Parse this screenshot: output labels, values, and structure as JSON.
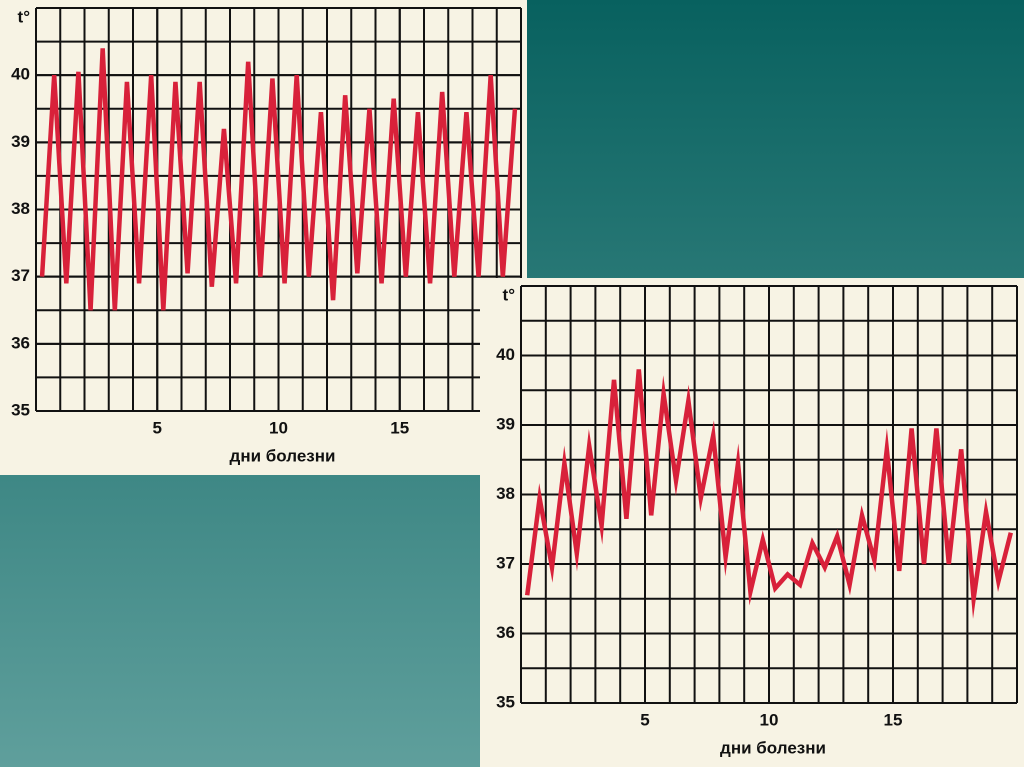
{
  "chart_data": [
    {
      "type": "line",
      "ylabel": "t°",
      "xlabel": "дни болезни",
      "color": "#d8213a",
      "xlim": [
        0,
        20
      ],
      "xticks": [
        5,
        10,
        15
      ],
      "ylim": [
        35,
        41
      ],
      "yticks": [
        35,
        36,
        37,
        38,
        39,
        40
      ],
      "grid": true,
      "x": [
        0.25,
        0.75,
        1.25,
        1.75,
        2.25,
        2.75,
        3.25,
        3.75,
        4.25,
        4.75,
        5.25,
        5.75,
        6.25,
        6.75,
        7.25,
        7.75,
        8.25,
        8.75,
        9.25,
        9.75,
        10.25,
        10.75,
        11.25,
        11.75,
        12.25,
        12.75,
        13.25,
        13.75,
        14.25,
        14.75,
        15.25,
        15.75,
        16.25,
        16.75,
        17.25,
        17.75,
        18.25,
        18.75,
        19.25,
        19.75
      ],
      "values": [
        37.0,
        40.0,
        36.9,
        40.05,
        36.5,
        40.4,
        36.5,
        39.9,
        36.9,
        40.0,
        36.5,
        39.9,
        37.05,
        39.9,
        36.85,
        39.2,
        36.9,
        40.2,
        37.0,
        39.95,
        36.9,
        40.0,
        37.0,
        39.45,
        36.65,
        39.7,
        37.05,
        39.5,
        36.9,
        39.65,
        37.0,
        39.45,
        36.9,
        39.75,
        37.0,
        39.45,
        37.0,
        40.0,
        37.0,
        39.5
      ]
    },
    {
      "type": "line",
      "ylabel": "t°",
      "xlabel": "дни болезни",
      "color": "#d8213a",
      "xlim": [
        0,
        20
      ],
      "xticks": [
        5,
        10,
        15
      ],
      "ylim": [
        35,
        41
      ],
      "yticks": [
        35,
        36,
        37,
        38,
        39,
        40
      ],
      "grid": true,
      "x": [
        0.25,
        0.75,
        1.25,
        1.75,
        2.25,
        2.75,
        3.25,
        3.75,
        4.25,
        4.75,
        5.25,
        5.75,
        6.25,
        6.75,
        7.25,
        7.75,
        8.25,
        8.75,
        9.25,
        9.75,
        10.25,
        10.75,
        11.25,
        11.75,
        12.25,
        12.75,
        13.25,
        13.75,
        14.25,
        14.75,
        15.25,
        15.75,
        16.25,
        16.75,
        17.25,
        17.75,
        18.25,
        18.75,
        19.25,
        19.75
      ],
      "values": [
        36.55,
        37.95,
        36.95,
        38.45,
        37.15,
        38.7,
        37.55,
        39.65,
        37.65,
        39.8,
        37.7,
        39.45,
        38.2,
        39.35,
        37.95,
        38.85,
        37.1,
        38.45,
        36.6,
        37.35,
        36.65,
        36.85,
        36.7,
        37.3,
        36.95,
        37.4,
        36.7,
        37.7,
        37.05,
        38.65,
        36.9,
        38.95,
        37.0,
        38.95,
        37.0,
        38.65,
        36.5,
        37.75,
        36.75,
        37.45
      ]
    }
  ]
}
